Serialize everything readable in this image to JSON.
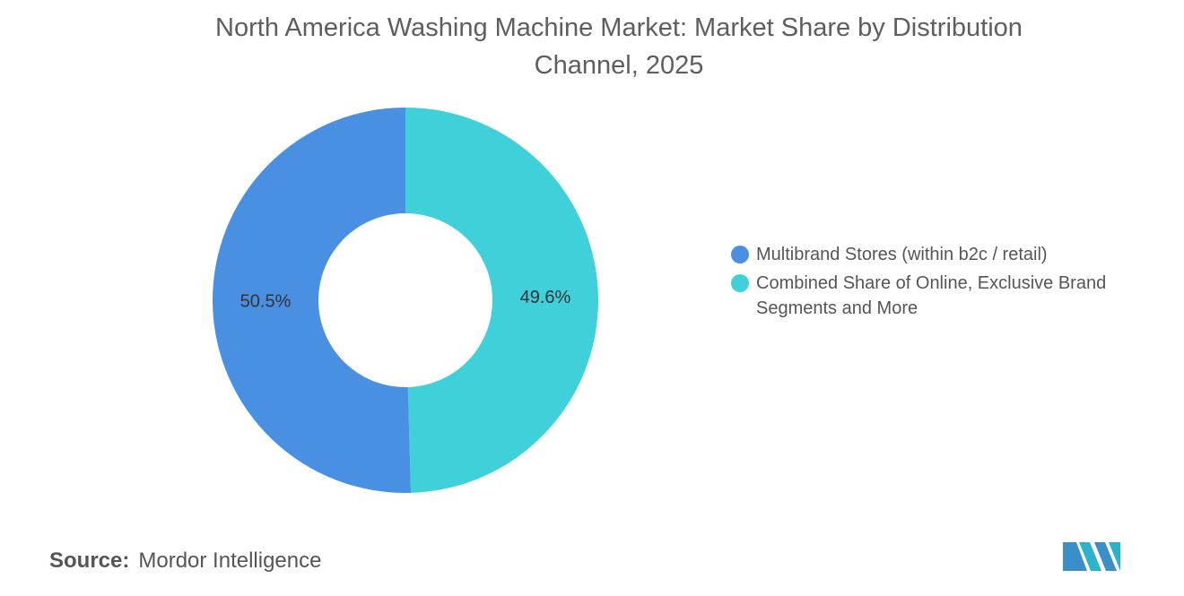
{
  "chart_data": {
    "type": "donut",
    "title": "North America Washing Machine Market: Market Share by Distribution Channel, 2025",
    "categories": [
      "Multibrand Stores (within b2c / retail)",
      "Combined Share of Online, Exclusive Brand Segments and More"
    ],
    "values": [
      50.5,
      49.6
    ],
    "value_labels": [
      "50.5%",
      "49.6%"
    ],
    "colors": [
      "#4a90e2",
      "#40d0da"
    ],
    "legend": "right"
  },
  "source_label": "Source:",
  "source": "Mordor Intelligence"
}
